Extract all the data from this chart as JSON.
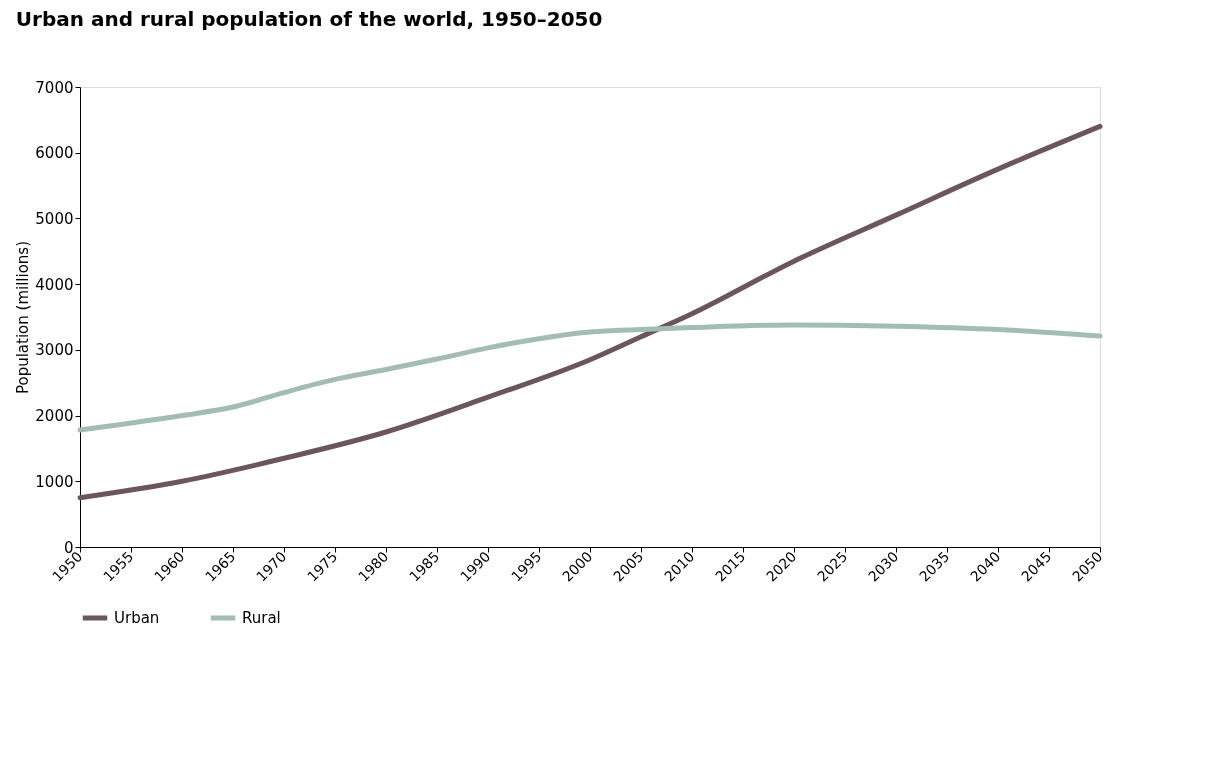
{
  "chart_data": {
    "type": "line",
    "title": "Urban and rural population of the world, 1950–2050",
    "ylabel": "Population (millions)",
    "x": [
      1950,
      1960,
      1970,
      1980,
      1990,
      2000,
      2005,
      2010,
      2020,
      2030,
      2040,
      2050
    ],
    "series": [
      {
        "name": "Urban",
        "color": "#6b565f",
        "values": [
          750,
          1000,
          1350,
          1750,
          2280,
          2850,
          3200,
          3550,
          4350,
          5050,
          5750,
          6400
        ]
      },
      {
        "name": "Rural",
        "color": "#a3bdb4",
        "x": [
          1950,
          1960,
          1965,
          1970,
          1975,
          1980,
          1985,
          1990,
          1995,
          2000,
          2005,
          2010,
          2020,
          2030,
          2040,
          2050
        ],
        "values": [
          1780,
          2000,
          2130,
          2350,
          2550,
          2700,
          2860,
          3030,
          3170,
          3270,
          3310,
          3340,
          3380,
          3360,
          3310,
          3210
        ]
      }
    ],
    "xlim": [
      1950,
      2050
    ],
    "xticks": [
      1950,
      1955,
      1960,
      1965,
      1970,
      1975,
      1980,
      1985,
      1990,
      1995,
      2000,
      2005,
      2010,
      2015,
      2020,
      2025,
      2030,
      2035,
      2040,
      2045,
      2050
    ],
    "ylim": [
      0,
      7000
    ],
    "yticks": [
      0,
      1000,
      2000,
      3000,
      4000,
      5000,
      6000,
      7000
    ],
    "grid": false,
    "legend": "bottom left",
    "marker": "none",
    "line_style": "solid"
  }
}
